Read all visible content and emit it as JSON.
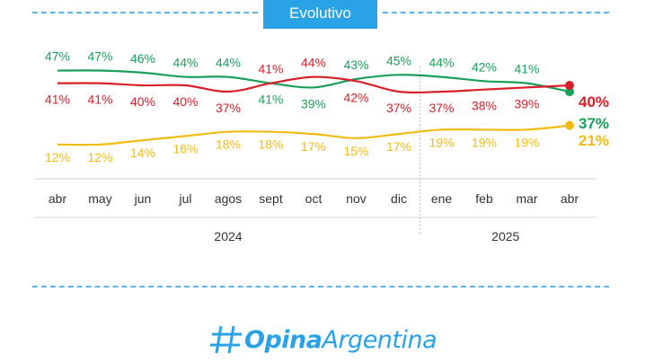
{
  "header": {
    "tab_label": "Evolutivo"
  },
  "chart_data": {
    "type": "line",
    "title": "Evolutivo",
    "categories": [
      "abr",
      "may",
      "jun",
      "jul",
      "agos",
      "sept",
      "oct",
      "nov",
      "dic",
      "ene",
      "feb",
      "mar",
      "abr"
    ],
    "years": [
      {
        "label": "2024"
      },
      {
        "label": "2025"
      }
    ],
    "series": [
      {
        "name": "Green",
        "color": "#1aa05a",
        "values": [
          47,
          47,
          46,
          44,
          44,
          41,
          39,
          43,
          45,
          44,
          42,
          41,
          37
        ],
        "labels": [
          "47%",
          "47%",
          "46%",
          "44%",
          "44%",
          "41%",
          "39%",
          "43%",
          "45%",
          "44%",
          "42%",
          "41%",
          "37%"
        ]
      },
      {
        "name": "Red",
        "color": "#d8202a",
        "values": [
          41,
          41,
          40,
          40,
          37,
          41,
          44,
          42,
          37,
          37,
          38,
          39,
          40
        ],
        "labels": [
          "41%",
          "41%",
          "40%",
          "40%",
          "37%",
          "41%",
          "44%",
          "42%",
          "37%",
          "37%",
          "38%",
          "39%",
          "40%"
        ]
      },
      {
        "name": "Yellow",
        "color": "#f2bb14",
        "values": [
          12,
          12,
          14,
          16,
          18,
          18,
          17,
          15,
          17,
          19,
          19,
          19,
          21
        ],
        "labels": [
          "12%",
          "12%",
          "14%",
          "16%",
          "18%",
          "18%",
          "17%",
          "15%",
          "17%",
          "19%",
          "19%",
          "19%",
          "21%"
        ]
      }
    ],
    "xlabel": "",
    "ylabel": "",
    "grid": false
  },
  "logo": {
    "bold": "Opina",
    "regular": "Argentina"
  }
}
